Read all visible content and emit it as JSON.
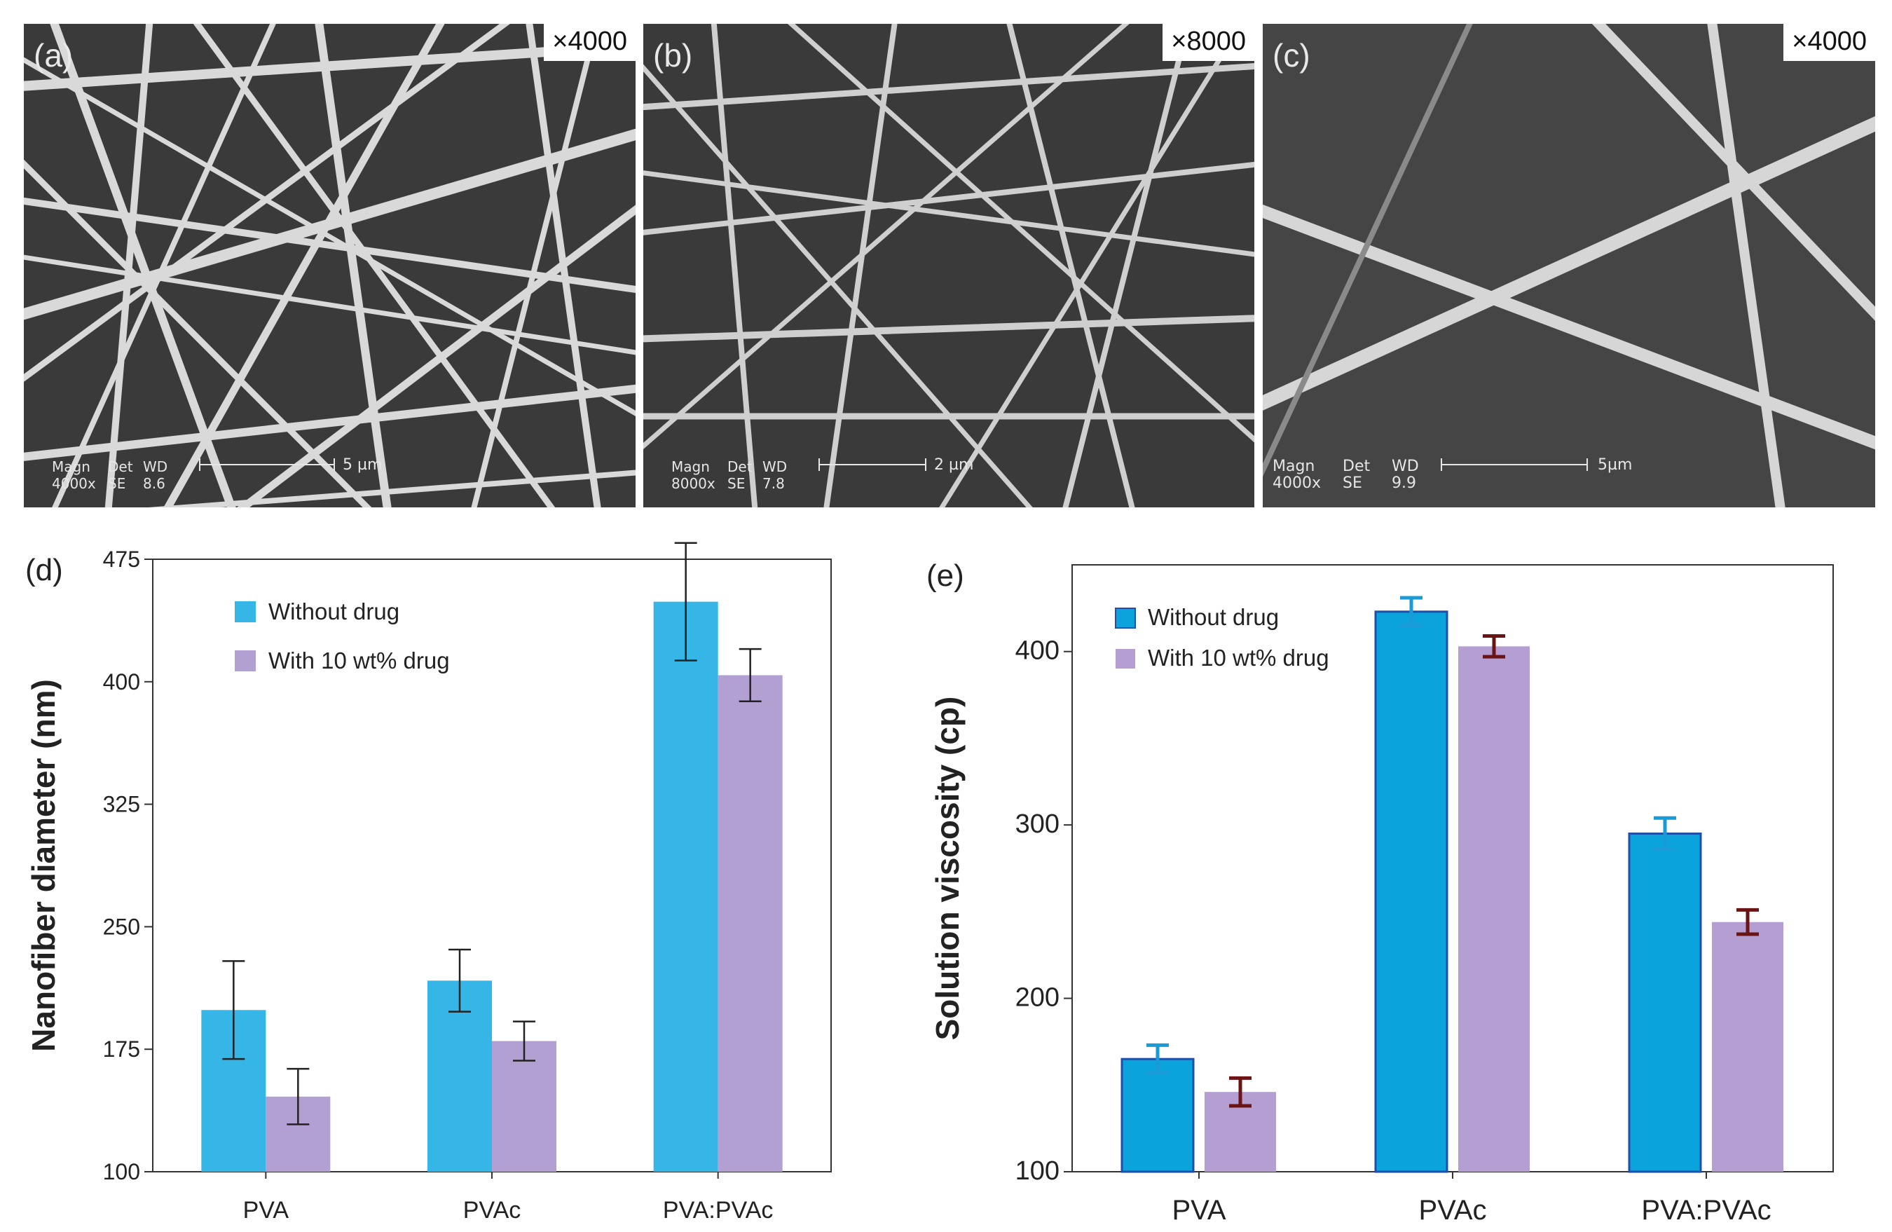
{
  "sem_panels": [
    {
      "label": "(a)",
      "magnification": "×4000",
      "databar": {
        "magn_label": "Magn",
        "det_label": "Det",
        "wd_label": "WD",
        "magn_value": "4000x",
        "det_value": "SE",
        "wd_value": "8.6"
      },
      "scale": "5 µm"
    },
    {
      "label": "(b)",
      "magnification": "×8000",
      "databar": {
        "magn_label": "Magn",
        "det_label": "Det",
        "wd_label": "WD",
        "magn_value": "8000x",
        "det_value": "SE",
        "wd_value": "7.8"
      },
      "scale": "2 µm"
    },
    {
      "label": "(c)",
      "magnification": "×4000",
      "databar": {
        "magn_label": "Magn",
        "det_label": "Det",
        "wd_label": "WD",
        "magn_value": "4000x",
        "det_value": "SE",
        "wd_value": "9.9"
      },
      "scale": "5µm"
    }
  ],
  "colors": {
    "without_d": "#35b6e6",
    "with_d": "#b3a0d2",
    "without_e": "#0aa3dc",
    "without_e_edge": "#1f4fa8",
    "with_e": "#b59ed2",
    "err_without_e": "#1a9ad6",
    "err_with_e": "#6b1414",
    "sem_bg": "#3a3a3a",
    "fiber": "#d9d9d9"
  },
  "chart_data": [
    {
      "panel": "(d)",
      "type": "bar",
      "categories": [
        "PVA",
        "PVAc",
        "PVA:PVAc"
      ],
      "series": [
        {
          "name": "Without drug",
          "values": [
            199,
            217,
            449
          ],
          "errors": [
            30,
            19,
            36
          ]
        },
        {
          "name": "With 10 wt% drug",
          "values": [
            146,
            180,
            404
          ],
          "errors": [
            17,
            12,
            16
          ]
        }
      ],
      "title": "",
      "xlabel": "",
      "ylabel": "Nanofiber diameter (nm)",
      "ylim": [
        100,
        475
      ],
      "yticks": [
        100,
        175,
        250,
        325,
        400,
        475
      ],
      "legend": "top-left",
      "grid": false
    },
    {
      "panel": "(e)",
      "type": "bar",
      "categories": [
        "PVA",
        "PVAc",
        "PVA:PVAc"
      ],
      "series": [
        {
          "name": "Without drug",
          "values": [
            165,
            423,
            295
          ],
          "errors": [
            8,
            8,
            9
          ]
        },
        {
          "name": "With 10 wt% drug",
          "values": [
            146,
            403,
            244
          ],
          "errors": [
            8,
            6,
            7
          ]
        }
      ],
      "title": "",
      "xlabel": "",
      "ylabel": "Solution viscosity (cp)",
      "ylim": [
        100,
        450
      ],
      "yticks": [
        100,
        200,
        300,
        400
      ],
      "legend": "top-left",
      "grid": false
    }
  ]
}
